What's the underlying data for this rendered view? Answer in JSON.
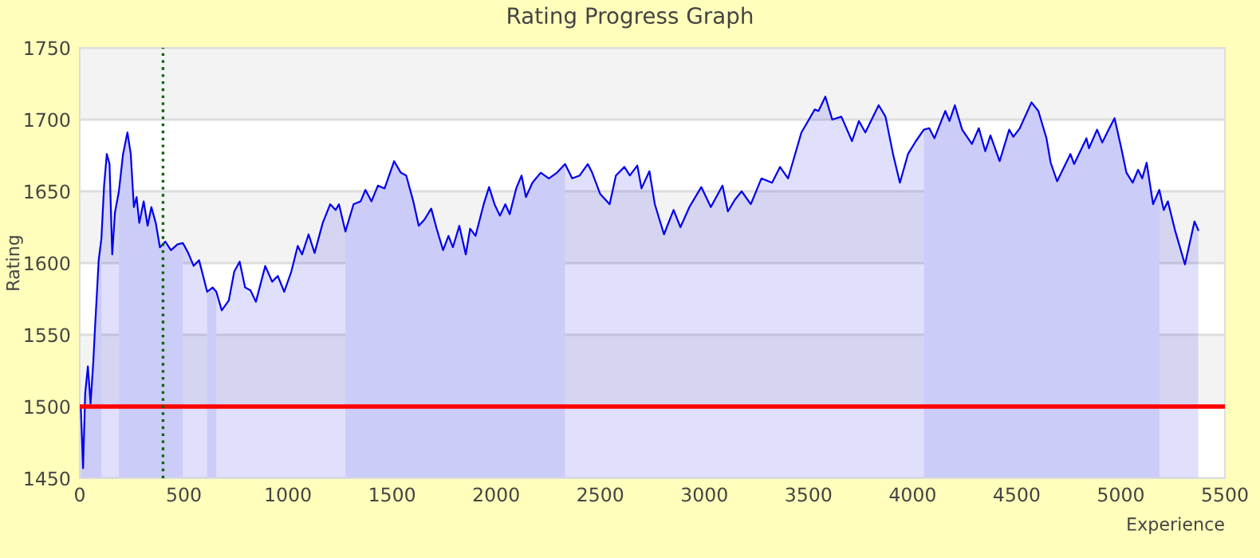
{
  "chart_data": {
    "type": "area",
    "title": "Rating Progress Graph",
    "xlabel": "Experience",
    "ylabel": "Rating",
    "xlim": [
      0,
      5500
    ],
    "xticks": [
      0,
      500,
      1000,
      1500,
      2000,
      2500,
      3000,
      3500,
      4000,
      4500,
      5000,
      5500
    ],
    "ylim": [
      1450,
      1750
    ],
    "yticks": [
      1450,
      1500,
      1550,
      1600,
      1650,
      1700,
      1750
    ],
    "grid": "y",
    "legend": false,
    "x": [
      5,
      16,
      26,
      39,
      52,
      65,
      73,
      91,
      104,
      117,
      130,
      143,
      156,
      169,
      188,
      208,
      229,
      245,
      260,
      273,
      286,
      307,
      326,
      344,
      365,
      385,
      411,
      438,
      469,
      495,
      521,
      547,
      573,
      612,
      638,
      656,
      682,
      716,
      742,
      768,
      794,
      820,
      846,
      891,
      924,
      951,
      982,
      1016,
      1047,
      1068,
      1099,
      1128,
      1167,
      1203,
      1229,
      1245,
      1276,
      1315,
      1349,
      1372,
      1401,
      1432,
      1464,
      1510,
      1542,
      1568,
      1602,
      1628,
      1654,
      1688,
      1714,
      1745,
      1771,
      1792,
      1823,
      1854,
      1875,
      1901,
      1940,
      1966,
      1992,
      2018,
      2044,
      2065,
      2096,
      2122,
      2143,
      2174,
      2214,
      2253,
      2292,
      2331,
      2365,
      2401,
      2440,
      2461,
      2500,
      2545,
      2575,
      2616,
      2642,
      2678,
      2698,
      2736,
      2762,
      2806,
      2852,
      2885,
      2928,
      2985,
      3031,
      3087,
      3113,
      3146,
      3179,
      3223,
      3274,
      3325,
      3363,
      3402,
      3466,
      3530,
      3548,
      3581,
      3614,
      3658,
      3709,
      3742,
      3773,
      3837,
      3870,
      3906,
      3939,
      3978,
      4016,
      4054,
      4080,
      4105,
      4157,
      4177,
      4203,
      4238,
      4285,
      4318,
      4349,
      4374,
      4418,
      4464,
      4484,
      4515,
      4571,
      4604,
      4643,
      4663,
      4694,
      4758,
      4776,
      4835,
      4847,
      4886,
      4911,
      4945,
      4970,
      5001,
      5027,
      5057,
      5083,
      5103,
      5124,
      5155,
      5185,
      5206,
      5226,
      5262,
      5308,
      5354,
      5372
    ],
    "series": [
      {
        "color": "#0000ee",
        "values": [
          1500,
          1457,
          1509,
          1528,
          1502,
          1531,
          1554,
          1602,
          1617,
          1654,
          1676,
          1669,
          1606,
          1635,
          1650,
          1676,
          1691,
          1676,
          1639,
          1646,
          1628,
          1643,
          1626,
          1639,
          1628,
          1611,
          1615,
          1609,
          1613,
          1614,
          1607,
          1598,
          1602,
          1580,
          1583,
          1580,
          1567,
          1574,
          1594,
          1601,
          1583,
          1581,
          1573,
          1598,
          1587,
          1591,
          1580,
          1594,
          1612,
          1606,
          1620,
          1607,
          1628,
          1641,
          1637,
          1641,
          1622,
          1641,
          1643,
          1651,
          1643,
          1654,
          1652,
          1671,
          1663,
          1661,
          1643,
          1626,
          1630,
          1638,
          1624,
          1609,
          1619,
          1611,
          1626,
          1606,
          1624,
          1619,
          1641,
          1653,
          1641,
          1633,
          1641,
          1634,
          1652,
          1661,
          1646,
          1656,
          1663,
          1659,
          1663,
          1669,
          1659,
          1661,
          1669,
          1663,
          1648,
          1641,
          1661,
          1667,
          1661,
          1668,
          1652,
          1664,
          1641,
          1620,
          1637,
          1625,
          1639,
          1653,
          1639,
          1654,
          1636,
          1644,
          1650,
          1641,
          1659,
          1656,
          1667,
          1659,
          1691,
          1707,
          1706,
          1716,
          1700,
          1702,
          1685,
          1699,
          1691,
          1710,
          1702,
          1676,
          1656,
          1676,
          1685,
          1693,
          1694,
          1687,
          1706,
          1699,
          1710,
          1693,
          1683,
          1694,
          1678,
          1689,
          1671,
          1693,
          1688,
          1694,
          1712,
          1706,
          1687,
          1670,
          1657,
          1676,
          1669,
          1687,
          1680,
          1693,
          1684,
          1694,
          1701,
          1681,
          1663,
          1656,
          1665,
          1659,
          1670,
          1641,
          1651,
          1637,
          1643,
          1622,
          1599,
          1629,
          1623
        ]
      },
      {
        "type": "area",
        "color": "#ccccf8",
        "x": [
          5,
          16,
          26,
          39,
          52,
          65,
          73,
          91,
          104
        ],
        "values": [
          1500,
          1457,
          1509,
          1528,
          1502,
          1531,
          1554,
          1602,
          1617
        ]
      },
      {
        "type": "area",
        "color": "#ccccf8",
        "x": [
          188,
          208,
          229,
          245,
          260,
          273,
          286,
          307,
          326,
          344,
          365,
          385,
          411,
          438,
          469,
          495
        ],
        "values": [
          1650,
          1676,
          1691,
          1676,
          1639,
          1646,
          1628,
          1643,
          1626,
          1639,
          1628,
          1611,
          1615,
          1609,
          1613,
          1614
        ]
      },
      {
        "type": "area",
        "color": "#ccccf8",
        "x": [
          612,
          638,
          656
        ],
        "values": [
          1580,
          1583,
          1580
        ]
      },
      {
        "type": "area",
        "color": "#ccccf8",
        "x": [
          1276,
          1315,
          1349,
          1372,
          1401,
          1432,
          1464,
          1510,
          1542,
          1568,
          1602,
          1628,
          1654,
          1688,
          1714,
          1745,
          1771,
          1792,
          1823,
          1854,
          1875,
          1901,
          1940,
          1966,
          1992,
          2018,
          2044,
          2065,
          2096,
          2122,
          2143,
          2174,
          2214,
          2253,
          2292,
          2331
        ],
        "values": [
          1622,
          1641,
          1643,
          1651,
          1643,
          1654,
          1652,
          1671,
          1663,
          1661,
          1643,
          1626,
          1630,
          1638,
          1624,
          1609,
          1619,
          1611,
          1626,
          1606,
          1624,
          1619,
          1641,
          1653,
          1641,
          1633,
          1641,
          1634,
          1652,
          1661,
          1646,
          1656,
          1663,
          1659,
          1663,
          1669
        ]
      },
      {
        "type": "area",
        "color": "#ccccf8",
        "x": [
          4054,
          4080,
          4105,
          4157,
          4177,
          4203,
          4238,
          4285,
          4318,
          4349,
          4374,
          4418,
          4464,
          4484,
          4515,
          4571,
          4604,
          4643,
          4663,
          4694,
          4758,
          4776,
          4835,
          4847,
          4886,
          4911,
          4945,
          4970,
          5001,
          5027,
          5057,
          5083,
          5103,
          5124,
          5155,
          5185
        ],
        "values": [
          1693,
          1694,
          1687,
          1706,
          1699,
          1710,
          1693,
          1683,
          1694,
          1678,
          1689,
          1671,
          1693,
          1688,
          1694,
          1712,
          1706,
          1687,
          1670,
          1657,
          1676,
          1669,
          1687,
          1680,
          1693,
          1684,
          1694,
          1701,
          1681,
          1663,
          1656,
          1665,
          1659,
          1670,
          1641,
          1651
        ]
      }
    ],
    "bands": [
      {
        "axis": "y",
        "from": 1500,
        "to": 1550,
        "color": "#f3f3f3"
      },
      {
        "axis": "y",
        "from": 1600,
        "to": 1650,
        "color": "#f3f3f3"
      },
      {
        "axis": "y",
        "from": 1700,
        "to": 1750,
        "color": "#f3f3f3"
      }
    ],
    "ref_lines": [
      {
        "axis": "y",
        "value": 1500,
        "color": "#ff0000",
        "line_style": "solid"
      },
      {
        "axis": "x",
        "value": 400,
        "color": "#006600",
        "line_style": "dotted"
      }
    ]
  }
}
